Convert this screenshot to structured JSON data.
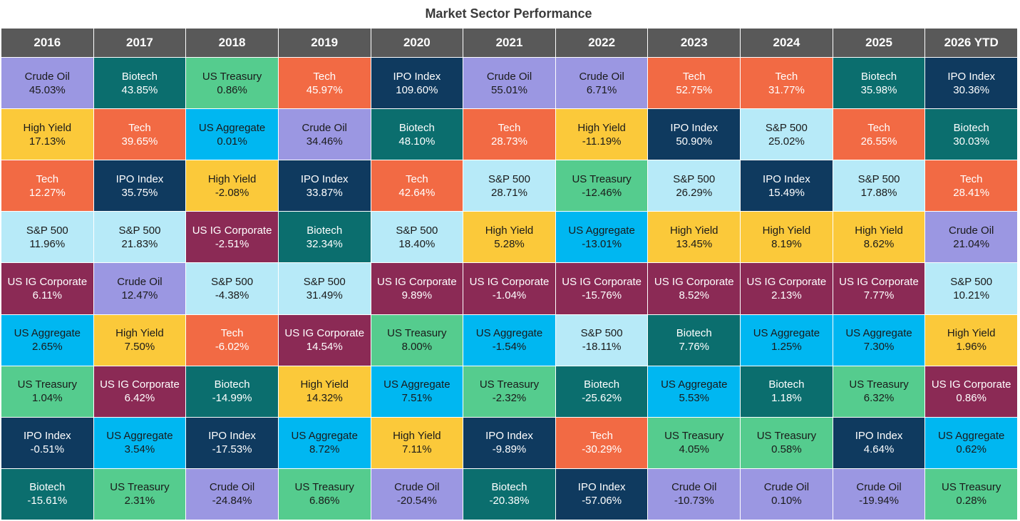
{
  "chart_data": {
    "type": "table",
    "title": "Market Sector Performance",
    "years": [
      "2016",
      "2017",
      "2018",
      "2019",
      "2020",
      "2021",
      "2022",
      "2023",
      "2024",
      "2025",
      "2026 YTD"
    ],
    "sector_colors": {
      "Crude Oil": {
        "bg": "#9b97e2",
        "fg": "#1a1a1a"
      },
      "Biotech": {
        "bg": "#0b6e6e",
        "fg": "#ffffff"
      },
      "US Treasury": {
        "bg": "#55cc8e",
        "fg": "#1a1a1a"
      },
      "Tech": {
        "bg": "#f26a44",
        "fg": "#ffffff"
      },
      "IPO Index": {
        "bg": "#0f3a5f",
        "fg": "#ffffff"
      },
      "High Yield": {
        "bg": "#fbc93a",
        "fg": "#1a1a1a"
      },
      "US Aggregate": {
        "bg": "#00b7f1",
        "fg": "#1a1a1a"
      },
      "S&P 500": {
        "bg": "#b7eaf8",
        "fg": "#1a1a1a"
      },
      "US IG Corporate": {
        "bg": "#8b2a55",
        "fg": "#ffffff"
      }
    },
    "columns": [
      [
        [
          "Crude Oil",
          "45.03%"
        ],
        [
          "High Yield",
          "17.13%"
        ],
        [
          "Tech",
          "12.27%"
        ],
        [
          "S&P 500",
          "11.96%"
        ],
        [
          "US IG Corporate",
          "6.11%"
        ],
        [
          "US Aggregate",
          "2.65%"
        ],
        [
          "US Treasury",
          "1.04%"
        ],
        [
          "IPO Index",
          "-0.51%"
        ],
        [
          "Biotech",
          "-15.61%"
        ]
      ],
      [
        [
          "Biotech",
          "43.85%"
        ],
        [
          "Tech",
          "39.65%"
        ],
        [
          "IPO Index",
          "35.75%"
        ],
        [
          "S&P 500",
          "21.83%"
        ],
        [
          "Crude Oil",
          "12.47%"
        ],
        [
          "High Yield",
          "7.50%"
        ],
        [
          "US IG Corporate",
          "6.42%"
        ],
        [
          "US Aggregate",
          "3.54%"
        ],
        [
          "US Treasury",
          "2.31%"
        ]
      ],
      [
        [
          "US Treasury",
          "0.86%"
        ],
        [
          "US Aggregate",
          "0.01%"
        ],
        [
          "High Yield",
          "-2.08%"
        ],
        [
          "US IG Corporate",
          "-2.51%"
        ],
        [
          "S&P 500",
          "-4.38%"
        ],
        [
          "Tech",
          "-6.02%"
        ],
        [
          "Biotech",
          "-14.99%"
        ],
        [
          "IPO Index",
          "-17.53%"
        ],
        [
          "Crude Oil",
          "-24.84%"
        ]
      ],
      [
        [
          "Tech",
          "45.97%"
        ],
        [
          "Crude Oil",
          "34.46%"
        ],
        [
          "IPO Index",
          "33.87%"
        ],
        [
          "Biotech",
          "32.34%"
        ],
        [
          "S&P 500",
          "31.49%"
        ],
        [
          "US IG Corporate",
          "14.54%"
        ],
        [
          "High Yield",
          "14.32%"
        ],
        [
          "US Aggregate",
          "8.72%"
        ],
        [
          "US Treasury",
          "6.86%"
        ]
      ],
      [
        [
          "IPO Index",
          "109.60%"
        ],
        [
          "Biotech",
          "48.10%"
        ],
        [
          "Tech",
          "42.64%"
        ],
        [
          "S&P 500",
          "18.40%"
        ],
        [
          "US IG Corporate",
          "9.89%"
        ],
        [
          "US Treasury",
          "8.00%"
        ],
        [
          "US Aggregate",
          "7.51%"
        ],
        [
          "High Yield",
          "7.11%"
        ],
        [
          "Crude Oil",
          "-20.54%"
        ]
      ],
      [
        [
          "Crude Oil",
          "55.01%"
        ],
        [
          "Tech",
          "28.73%"
        ],
        [
          "S&P 500",
          "28.71%"
        ],
        [
          "High Yield",
          "5.28%"
        ],
        [
          "US IG Corporate",
          "-1.04%"
        ],
        [
          "US Aggregate",
          "-1.54%"
        ],
        [
          "US Treasury",
          "-2.32%"
        ],
        [
          "IPO Index",
          "-9.89%"
        ],
        [
          "Biotech",
          "-20.38%"
        ]
      ],
      [
        [
          "Crude Oil",
          "6.71%"
        ],
        [
          "High Yield",
          "-11.19%"
        ],
        [
          "US Treasury",
          "-12.46%"
        ],
        [
          "US Aggregate",
          "-13.01%"
        ],
        [
          "US IG Corporate",
          "-15.76%"
        ],
        [
          "S&P 500",
          "-18.11%"
        ],
        [
          "Biotech",
          "-25.62%"
        ],
        [
          "Tech",
          "-30.29%"
        ],
        [
          "IPO Index",
          "-57.06%"
        ]
      ],
      [
        [
          "Tech",
          "52.75%"
        ],
        [
          "IPO Index",
          "50.90%"
        ],
        [
          "S&P 500",
          "26.29%"
        ],
        [
          "High Yield",
          "13.45%"
        ],
        [
          "US IG Corporate",
          "8.52%"
        ],
        [
          "Biotech",
          "7.76%"
        ],
        [
          "US Aggregate",
          "5.53%"
        ],
        [
          "US Treasury",
          "4.05%"
        ],
        [
          "Crude Oil",
          "-10.73%"
        ]
      ],
      [
        [
          "Tech",
          "31.77%"
        ],
        [
          "S&P 500",
          "25.02%"
        ],
        [
          "IPO Index",
          "15.49%"
        ],
        [
          "High Yield",
          "8.19%"
        ],
        [
          "US IG Corporate",
          "2.13%"
        ],
        [
          "US Aggregate",
          "1.25%"
        ],
        [
          "Biotech",
          "1.18%"
        ],
        [
          "US Treasury",
          "0.58%"
        ],
        [
          "Crude Oil",
          "0.10%"
        ]
      ],
      [
        [
          "Biotech",
          "35.98%"
        ],
        [
          "Tech",
          "26.55%"
        ],
        [
          "S&P 500",
          "17.88%"
        ],
        [
          "High Yield",
          "8.62%"
        ],
        [
          "US IG Corporate",
          "7.77%"
        ],
        [
          "US Aggregate",
          "7.30%"
        ],
        [
          "US Treasury",
          "6.32%"
        ],
        [
          "IPO Index",
          "4.64%"
        ],
        [
          "Crude Oil",
          "-19.94%"
        ]
      ],
      [
        [
          "IPO Index",
          "30.36%"
        ],
        [
          "Biotech",
          "30.03%"
        ],
        [
          "Tech",
          "28.41%"
        ],
        [
          "Crude Oil",
          "21.04%"
        ],
        [
          "S&P 500",
          "10.21%"
        ],
        [
          "High Yield",
          "1.96%"
        ],
        [
          "US IG Corporate",
          "0.86%"
        ],
        [
          "US Aggregate",
          "0.62%"
        ],
        [
          "US Treasury",
          "0.28%"
        ]
      ]
    ]
  }
}
